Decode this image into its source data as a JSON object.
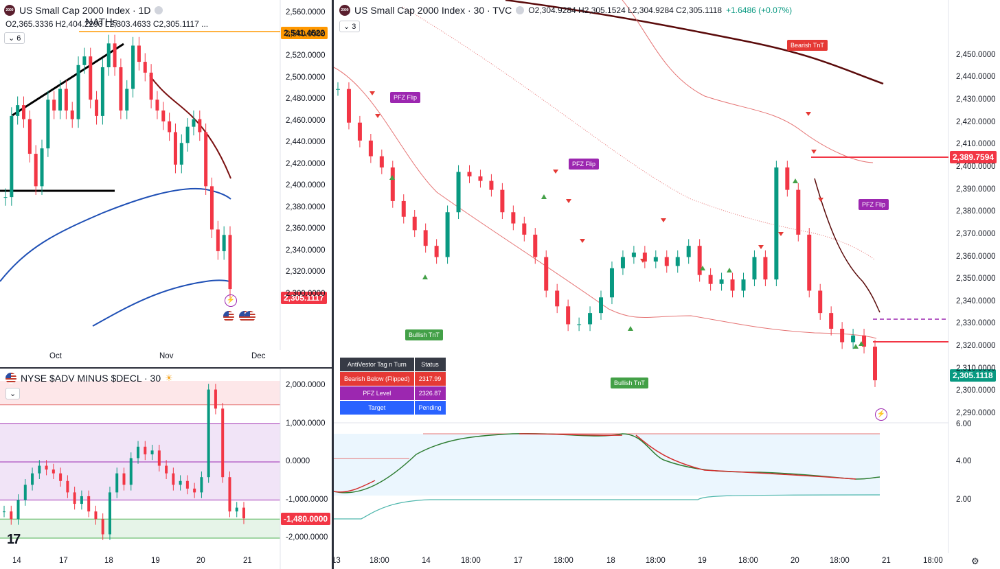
{
  "colors": {
    "up": "#089981",
    "down": "#f23645",
    "bg": "#ffffff",
    "accent": "#2962ff"
  },
  "left_top": {
    "title": "US Small Cap 2000 Index · 1D",
    "ohlc": "O2,365.3336  H2,404.2293  L2,303.4633  C2,305.1117  ...",
    "indicator_count": "6",
    "annotation": "NATHs",
    "price_tags": {
      "orange": "2,541.4522",
      "last": "2,305.1117"
    },
    "y_ticks": [
      "2,560.0000",
      "2,540.0000",
      "2,520.0000",
      "2,500.0000",
      "2,480.0000",
      "2,460.0000",
      "2,440.0000",
      "2,420.0000",
      "2,400.0000",
      "2,380.0000",
      "2,360.0000",
      "2,340.0000",
      "2,320.0000",
      "2,300.0000"
    ],
    "x_ticks": [
      "Oct",
      "Nov",
      "Dec"
    ]
  },
  "left_bottom": {
    "title": "NYSE $ADV MINUS $DECL · 30",
    "y_ticks": [
      "2,000.0000",
      "1,000.0000",
      "0.0000",
      "-1,000.0000",
      "-2,000.0000"
    ],
    "last_tag": "-1,480.0000",
    "x_ticks": [
      "14",
      "17",
      "18",
      "19",
      "20",
      "21"
    ],
    "tv_logo": "17"
  },
  "right": {
    "title": "US Small Cap 2000 Index · 30 · TVC",
    "ohlc_prefix": "O2,304.9284  H2,305.1524  L2,304.9284  C2,305.1118",
    "ohlc_change": "+1.6486 (+0.07%)",
    "indicator_count": "3",
    "y_ticks": [
      "2,450.0000",
      "2,440.0000",
      "2,430.0000",
      "2,420.0000",
      "2,410.0000",
      "2,400.0000",
      "2,390.0000",
      "2,380.0000",
      "2,370.0000",
      "2,360.0000",
      "2,350.0000",
      "2,340.0000",
      "2,330.0000",
      "2,320.0000",
      "2,310.0000",
      "2,300.0000",
      "2,290.0000"
    ],
    "price_tags": {
      "red": "2,389.7594",
      "last": "2,305.1118"
    },
    "osc_ticks": [
      "6.00",
      "4.00",
      "2.00"
    ],
    "x_ticks": [
      "13",
      "18:00",
      "14",
      "18:00",
      "17",
      "18:00",
      "18",
      "18:00",
      "19",
      "18:00",
      "20",
      "18:00",
      "21",
      "18:00"
    ],
    "badges": {
      "pfz1": "PFZ Flip",
      "pfz2": "PFZ Flip",
      "pfz3": "PFZ Flip",
      "bear": "Bearish TnT",
      "bull1": "Bullish TnT",
      "bull2": "Bullish TnT"
    },
    "table": {
      "h1": "AntiVestor Tag n Turn",
      "h2": "Status",
      "r1a": "Bearish Below (Flipped)",
      "r1b": "2317.99",
      "r2a": "PFZ Level",
      "r2b": "2326.87",
      "r3a": "Target",
      "r3b": "Pending"
    }
  },
  "chart_data": [
    {
      "type": "line",
      "title": "US Small Cap 2000 Index · 1D",
      "x_ticks": [
        "Oct",
        "Nov",
        "Dec"
      ],
      "ylim": [
        2293,
        2562
      ],
      "y_ticks": [
        2560,
        2540,
        2520,
        2500,
        2480,
        2460,
        2440,
        2420,
        2400,
        2380,
        2360,
        2340,
        2320,
        2300
      ],
      "series": [
        {
          "values": [
            2390,
            2465,
            2475,
            2462,
            2430,
            2400,
            2435,
            2480,
            2470,
            2490,
            2470,
            2462,
            2512,
            2520,
            2480,
            2465,
            2510,
            2532,
            2510,
            2470,
            2490,
            2530,
            2515,
            2505,
            2480,
            2470,
            2460,
            2450,
            2420,
            2440,
            2455,
            2462,
            2450,
            2400,
            2360,
            2340,
            2355,
            2305
          ]
        }
      ]
    },
    {
      "type": "line",
      "title": "NYSE $ADV MINUS $DECL · 30",
      "x_ticks": [
        "14",
        "17",
        "18",
        "19",
        "20",
        "21"
      ],
      "ylim": [
        -2000,
        2000
      ],
      "y_ticks": [
        2000,
        1000,
        0,
        -1000,
        -2000
      ],
      "series": [
        {
          "values": [
            -1300,
            -1500,
            -1000,
            -600,
            -300,
            -100,
            -200,
            -300,
            -500,
            -800,
            -1100,
            -900,
            -1300,
            -1500,
            -1900,
            -800,
            -300,
            -600,
            100,
            400,
            200,
            300,
            -100,
            -300,
            -600,
            -500,
            -700,
            -800,
            -400,
            1900,
            1400,
            -400,
            -1300,
            -1200,
            -1480
          ]
        }
      ]
    },
    {
      "type": "line",
      "title": "US Small Cap 2000 Index · 30 · TVC",
      "x_ticks": [
        "13",
        "18:00",
        "14",
        "18:00",
        "17",
        "18:00",
        "18",
        "18:00",
        "19",
        "18:00",
        "20",
        "18:00",
        "21",
        "18:00"
      ],
      "ylim": [
        2286,
        2452
      ],
      "y_ticks": [
        2450,
        2440,
        2430,
        2420,
        2410,
        2400,
        2390,
        2380,
        2370,
        2360,
        2350,
        2340,
        2330,
        2320,
        2310,
        2300,
        2290
      ],
      "series": [
        {
          "values": [
            2435,
            2420,
            2412,
            2405,
            2400,
            2385,
            2378,
            2372,
            2365,
            2360,
            2380,
            2398,
            2396,
            2394,
            2390,
            2380,
            2375,
            2370,
            2360,
            2345,
            2338,
            2330,
            2330,
            2335,
            2342,
            2355,
            2360,
            2362,
            2358,
            2360,
            2356,
            2360,
            2365,
            2352,
            2348,
            2350,
            2345,
            2350,
            2360,
            2350,
            2400,
            2390,
            2370,
            2345,
            2335,
            2328,
            2322,
            2325,
            2320,
            2305
          ]
        }
      ]
    }
  ]
}
